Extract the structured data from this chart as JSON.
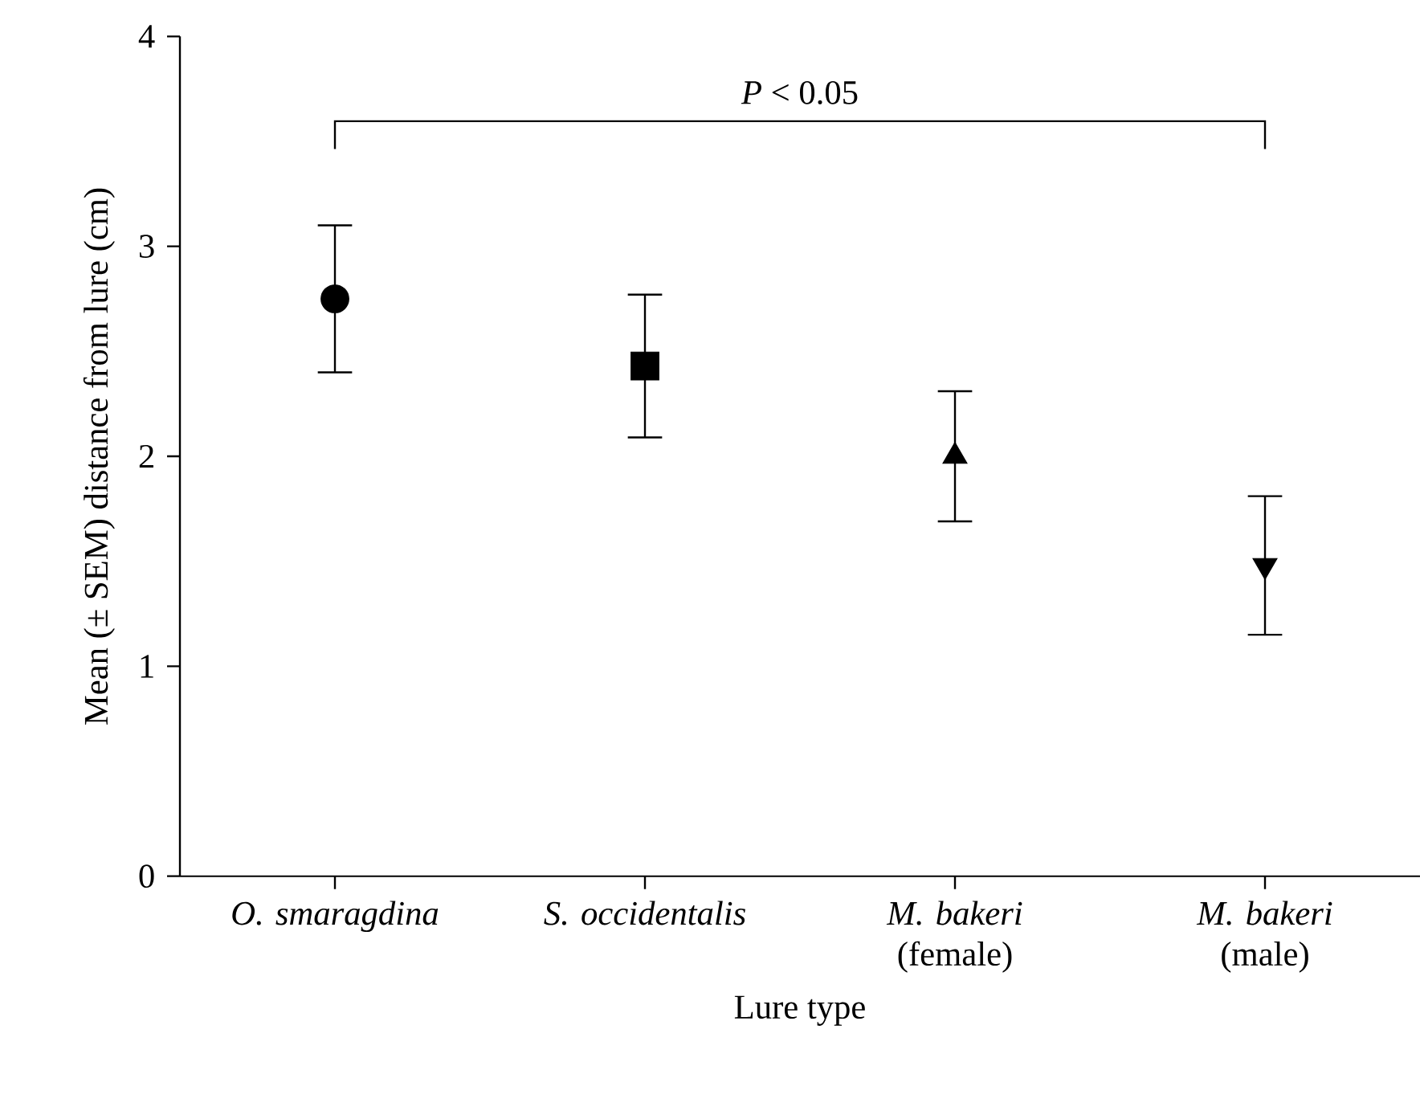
{
  "chart_data": {
    "type": "scatter",
    "xlabel": "Lure type",
    "ylabel": "Mean (± SEM) distance from lure (cm)",
    "categories": [
      "*O. smaragdina*",
      "*S. occidentalis*",
      "*M. bakeri* (female)",
      "*M. bakeri* (male)"
    ],
    "series": [
      {
        "color": "#000000",
        "marker": "circle",
        "values": [
          2.75,
          null,
          null,
          null
        ],
        "errors": [
          0.35,
          null,
          null,
          null
        ]
      },
      {
        "color": "#000000",
        "marker": "square",
        "values": [
          null,
          2.43,
          null,
          null
        ],
        "errors": [
          null,
          0.34,
          null,
          null
        ]
      },
      {
        "color": "#000000",
        "marker": "triangle",
        "values": [
          null,
          null,
          2.0,
          null
        ],
        "errors": [
          null,
          null,
          0.31,
          null
        ]
      },
      {
        "color": "#000000",
        "marker": "triangle-down",
        "values": [
          null,
          null,
          null,
          1.48
        ],
        "errors": [
          null,
          null,
          null,
          0.33
        ]
      }
    ],
    "ylim": [
      0,
      4
    ],
    "yticks": [
      0,
      1,
      2,
      3,
      4
    ],
    "grid": false,
    "annotations": [
      "*P* < 0.05"
    ]
  }
}
